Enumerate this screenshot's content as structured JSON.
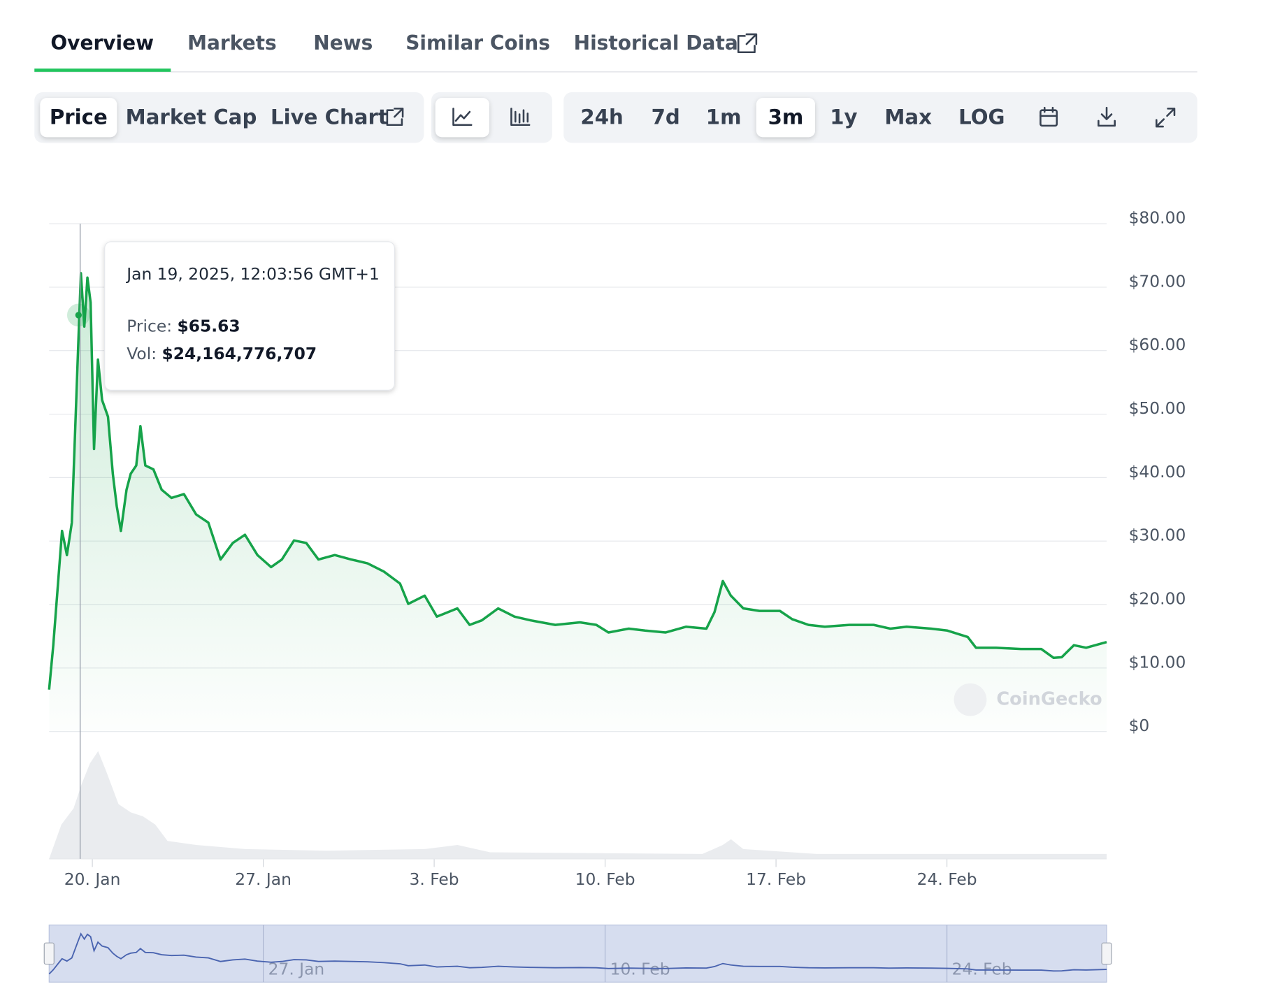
{
  "tabs": [
    "Overview",
    "Markets",
    "News",
    "Similar Coins",
    "Historical Data"
  ],
  "toolbar": {
    "metrics": [
      "Price",
      "Market Cap",
      "Live Chart"
    ],
    "ranges": [
      "24h",
      "7d",
      "1m",
      "3m",
      "1y",
      "Max",
      "LOG"
    ]
  },
  "chart_data": {
    "type": "line",
    "color": "#16a34a",
    "grid": true,
    "x": [
      18.23,
      18.4,
      18.63,
      18.76,
      18.96,
      19.16,
      19.4,
      19.53,
      19.67,
      19.8,
      19.93,
      20.07,
      20.23,
      20.4,
      20.64,
      20.84,
      21.0,
      21.17,
      21.4,
      21.57,
      21.8,
      21.97,
      22.17,
      22.5,
      22.84,
      23.24,
      23.75,
      24.25,
      24.75,
      25.25,
      25.75,
      26.25,
      26.76,
      27.32,
      27.76,
      28.26,
      28.76,
      29.26,
      29.93,
      30.6,
      31.27,
      31.94,
      32.6,
      32.94,
      33.61,
      34.11,
      34.95,
      35.45,
      35.95,
      36.62,
      37.29,
      37.96,
      38.96,
      39.97,
      40.64,
      41.14,
      41.97,
      42.64,
      43.48,
      44.31,
      45.15,
      45.48,
      45.82,
      46.15,
      46.66,
      47.32,
      48.16,
      48.66,
      49.33,
      50.0,
      51.0,
      52.0,
      52.68,
      53.35,
      54.35,
      55.02,
      55.85,
      56.19,
      57.02,
      58.03,
      58.86,
      59.37,
      59.7,
      60.2,
      60.7,
      61.54
    ],
    "values": [
      6.6,
      13.6,
      25.2,
      31.6,
      27.8,
      32.9,
      58.6,
      72.2,
      63.8,
      71.5,
      67.6,
      44.5,
      58.6,
      52.2,
      49.6,
      40.6,
      35.5,
      31.6,
      38.1,
      40.6,
      41.9,
      48.1,
      41.9,
      41.3,
      38.1,
      36.8,
      37.4,
      34.2,
      32.9,
      27.1,
      29.7,
      31.0,
      27.8,
      25.9,
      27.1,
      30.1,
      29.7,
      27.1,
      27.8,
      27.1,
      26.5,
      25.2,
      23.3,
      20.1,
      21.4,
      18.1,
      19.4,
      16.8,
      17.5,
      19.4,
      18.1,
      17.5,
      16.8,
      17.2,
      16.8,
      15.6,
      16.2,
      15.9,
      15.6,
      16.5,
      16.2,
      18.8,
      23.7,
      21.4,
      19.4,
      19.0,
      19.0,
      17.7,
      16.8,
      16.5,
      16.8,
      16.8,
      16.2,
      16.5,
      16.2,
      15.9,
      14.9,
      13.2,
      13.2,
      13.0,
      13.0,
      11.6,
      11.7,
      13.6,
      13.2,
      14.1
    ],
    "xlim": [
      18.23,
      61.54
    ],
    "xticks": [
      {
        "value": 20,
        "label": "20. Jan"
      },
      {
        "value": 27,
        "label": "27. Jan"
      },
      {
        "value": 34,
        "label": "3. Feb"
      },
      {
        "value": 41,
        "label": "10. Feb"
      },
      {
        "value": 48,
        "label": "17. Feb"
      },
      {
        "value": 55,
        "label": "24. Feb"
      }
    ],
    "ylim": [
      0,
      80
    ],
    "yticks": [
      {
        "value": 0,
        "label": "$0"
      },
      {
        "value": 10,
        "label": "$10.00"
      },
      {
        "value": 20,
        "label": "$20.00"
      },
      {
        "value": 30,
        "label": "$30.00"
      },
      {
        "value": 40,
        "label": "$40.00"
      },
      {
        "value": 50,
        "label": "$50.00"
      },
      {
        "value": 60,
        "label": "$60.00"
      },
      {
        "value": 70,
        "label": "$70.00"
      },
      {
        "value": 80,
        "label": "$80.00"
      }
    ],
    "tooltip": {
      "date": "Jan 19, 2025, 12:03:56 GMT+1",
      "price_label": "Price:",
      "price": "$65.63",
      "vol_label": "Vol:",
      "vol": "$24,164,776,707"
    },
    "watermark": "CoinGecko"
  }
}
